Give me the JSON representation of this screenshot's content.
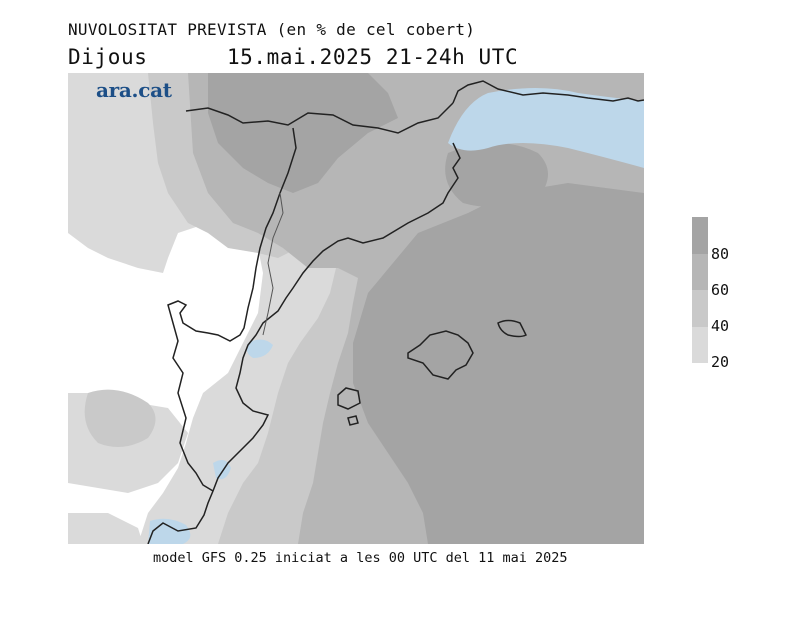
{
  "header": {
    "title": "NUVOLOSITAT PREVISTA (en % de cel cobert)",
    "day": "Dijous",
    "datetime": "15.mai.2025 21-24h UTC"
  },
  "brand": "ara.cat",
  "footer": "model GFS 0.25 iniciat a les 00 UTC del 11 mai 2025",
  "legend": {
    "labels": [
      "80",
      "60",
      "40",
      "20"
    ],
    "colors": [
      "#a4a4a4",
      "#b6b6b6",
      "#c9c9c9",
      "#dadada"
    ]
  },
  "colors": {
    "sea_clear": "#bdd7ea",
    "cover_20": "#dadada",
    "cover_40": "#c9c9c9",
    "cover_60": "#b6b6b6",
    "cover_80": "#a4a4a4",
    "coastline": "#222222"
  }
}
